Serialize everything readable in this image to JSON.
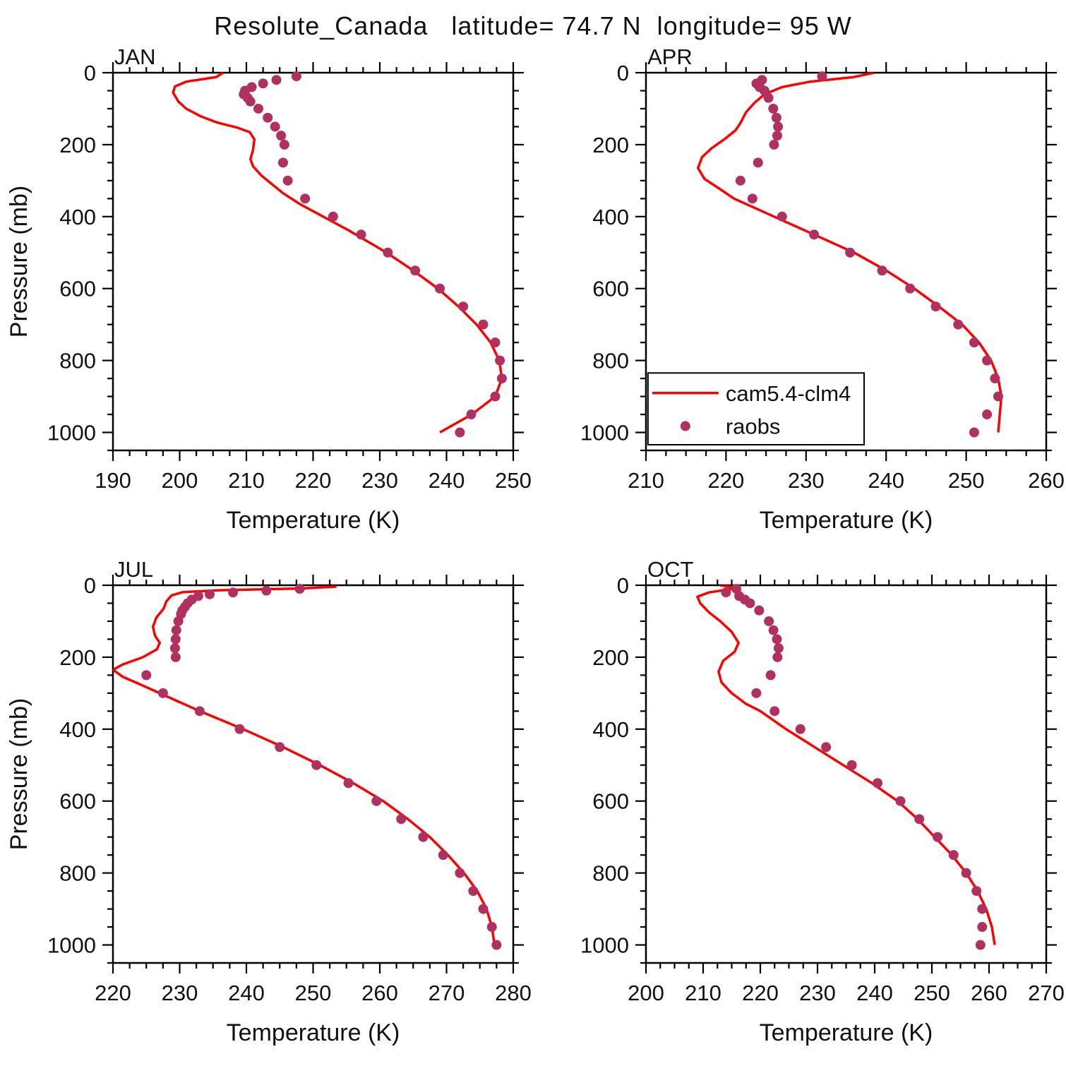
{
  "title": "Resolute_Canada   latitude= 74.7 N  longitude= 95 W",
  "colors": {
    "model_line": "#ff0000",
    "obs_dot": "#b03060",
    "axis": "#000000"
  },
  "legend": {
    "model_label": "cam5.4-clm4",
    "obs_label": "raobs"
  },
  "chart_data": [
    {
      "type": "line",
      "panel_label": "JAN",
      "xlabel": "Temperature (K)",
      "ylabel": "Pressure (mb)",
      "show_ylabel": true,
      "xlim": [
        190,
        250
      ],
      "x_ticks": [
        190,
        200,
        210,
        220,
        230,
        240,
        250
      ],
      "x_minor": 2.5,
      "y_ticks": [
        0,
        200,
        400,
        600,
        800,
        1000
      ],
      "y_minor": 50,
      "y_axis_max": 1050,
      "series": [
        {
          "name": "cam5.4-clm4",
          "style": "line",
          "color": "#ff0000",
          "points": [
            [
              206.5,
              0
            ],
            [
              205.5,
              12
            ],
            [
              201,
              25
            ],
            [
              199.3,
              38
            ],
            [
              199,
              55
            ],
            [
              199.8,
              80
            ],
            [
              201,
              100
            ],
            [
              203,
              120
            ],
            [
              205.5,
              138
            ],
            [
              208.5,
              152
            ],
            [
              210.5,
              165
            ],
            [
              211.2,
              185
            ],
            [
              211,
              215
            ],
            [
              210.6,
              240
            ],
            [
              211,
              260
            ],
            [
              212.2,
              285
            ],
            [
              213.5,
              305
            ],
            [
              215.5,
              335
            ],
            [
              218,
              365
            ],
            [
              220.5,
              390
            ],
            [
              223,
              415
            ],
            [
              225.5,
              440
            ],
            [
              227.5,
              462
            ],
            [
              231,
              500
            ],
            [
              235,
              550
            ],
            [
              238.7,
              600
            ],
            [
              241.8,
              650
            ],
            [
              244.5,
              700
            ],
            [
              246.6,
              750
            ],
            [
              247.9,
              800
            ],
            [
              248.3,
              850
            ],
            [
              247.3,
              900
            ],
            [
              243.8,
              950
            ],
            [
              239,
              1000
            ]
          ]
        },
        {
          "name": "raobs",
          "style": "scatter",
          "color": "#b03060",
          "points": [
            [
              217.5,
              10
            ],
            [
              214.5,
              20
            ],
            [
              212.5,
              30
            ],
            [
              210.8,
              40
            ],
            [
              209.8,
              50
            ],
            [
              209.6,
              60
            ],
            [
              210.2,
              70
            ],
            [
              210.6,
              80
            ],
            [
              211.8,
              100
            ],
            [
              213.2,
              125
            ],
            [
              214.3,
              150
            ],
            [
              215.2,
              175
            ],
            [
              215.7,
              200
            ],
            [
              215.5,
              250
            ],
            [
              216.2,
              300
            ],
            [
              218.8,
              350
            ],
            [
              223,
              400
            ],
            [
              227.2,
              450
            ],
            [
              231.2,
              500
            ],
            [
              235.3,
              550
            ],
            [
              239,
              600
            ],
            [
              242.5,
              650
            ],
            [
              245.5,
              700
            ],
            [
              247.3,
              750
            ],
            [
              248,
              800
            ],
            [
              248.3,
              850
            ],
            [
              247.3,
              900
            ],
            [
              243.7,
              950
            ],
            [
              242,
              1000
            ]
          ]
        }
      ]
    },
    {
      "type": "line",
      "panel_label": "APR",
      "xlabel": "Temperature (K)",
      "ylabel": "Pressure (mb)",
      "show_ylabel": false,
      "xlim": [
        210,
        260
      ],
      "x_ticks": [
        210,
        220,
        230,
        240,
        250,
        260
      ],
      "x_minor": 2.5,
      "y_ticks": [
        0,
        200,
        400,
        600,
        800,
        1000
      ],
      "y_minor": 50,
      "y_axis_max": 1050,
      "legend_box": {
        "x0": 0.005,
        "y0": 0.795,
        "x1": 0.545,
        "y1": 0.985
      },
      "series": [
        {
          "name": "cam5.4-clm4",
          "style": "line",
          "color": "#ff0000",
          "points": [
            [
              238.5,
              0
            ],
            [
              236,
              12
            ],
            [
              230.5,
              25
            ],
            [
              227,
              40
            ],
            [
              224.8,
              60
            ],
            [
              223.5,
              85
            ],
            [
              222.5,
              110
            ],
            [
              221.8,
              140
            ],
            [
              221.2,
              160
            ],
            [
              219.8,
              185
            ],
            [
              218.2,
              210
            ],
            [
              217,
              235
            ],
            [
              216.5,
              265
            ],
            [
              217.3,
              295
            ],
            [
              219,
              320
            ],
            [
              221,
              350
            ],
            [
              226,
              400
            ],
            [
              231,
              450
            ],
            [
              236,
              500
            ],
            [
              240,
              550
            ],
            [
              243.5,
              600
            ],
            [
              246.6,
              650
            ],
            [
              249.5,
              700
            ],
            [
              251.6,
              750
            ],
            [
              253.1,
              800
            ],
            [
              254,
              850
            ],
            [
              254.4,
              900
            ],
            [
              254.2,
              950
            ],
            [
              254,
              1000
            ]
          ]
        },
        {
          "name": "raobs",
          "style": "scatter",
          "color": "#b03060",
          "points": [
            [
              232,
              10
            ],
            [
              224.5,
              20
            ],
            [
              223.8,
              30
            ],
            [
              224.2,
              40
            ],
            [
              224.8,
              50
            ],
            [
              225.3,
              70
            ],
            [
              225.9,
              100
            ],
            [
              226.3,
              125
            ],
            [
              226.5,
              150
            ],
            [
              226.4,
              175
            ],
            [
              226,
              200
            ],
            [
              224,
              250
            ],
            [
              221.8,
              300
            ],
            [
              223.3,
              350
            ],
            [
              227,
              400
            ],
            [
              231,
              450
            ],
            [
              235.5,
              500
            ],
            [
              239.5,
              550
            ],
            [
              243,
              600
            ],
            [
              246.2,
              650
            ],
            [
              249,
              700
            ],
            [
              251,
              750
            ],
            [
              252.6,
              800
            ],
            [
              253.6,
              850
            ],
            [
              254,
              900
            ],
            [
              252.6,
              950
            ],
            [
              251,
              1000
            ]
          ]
        }
      ]
    },
    {
      "type": "line",
      "panel_label": "JUL",
      "xlabel": "Temperature (K)",
      "ylabel": "Pressure (mb)",
      "show_ylabel": true,
      "xlim": [
        220,
        280
      ],
      "x_ticks": [
        220,
        230,
        240,
        250,
        260,
        270,
        280
      ],
      "x_minor": 2.5,
      "y_ticks": [
        0,
        200,
        400,
        600,
        800,
        1000
      ],
      "y_minor": 50,
      "y_axis_max": 1050,
      "series": [
        {
          "name": "cam5.4-clm4",
          "style": "line",
          "color": "#ff0000",
          "points": [
            [
              253.5,
              4
            ],
            [
              248,
              9
            ],
            [
              236,
              14
            ],
            [
              230.5,
              19
            ],
            [
              228.8,
              28
            ],
            [
              228,
              45
            ],
            [
              227.6,
              65
            ],
            [
              226.5,
              90
            ],
            [
              226,
              115
            ],
            [
              226.3,
              140
            ],
            [
              227,
              160
            ],
            [
              226.6,
              178
            ],
            [
              224.5,
              200
            ],
            [
              221.5,
              220
            ],
            [
              220,
              235
            ],
            [
              221.5,
              255
            ],
            [
              224,
              275
            ],
            [
              227,
              300
            ],
            [
              230,
              325
            ],
            [
              233,
              350
            ],
            [
              239.5,
              400
            ],
            [
              245.5,
              450
            ],
            [
              251,
              500
            ],
            [
              256,
              550
            ],
            [
              260.5,
              600
            ],
            [
              264.2,
              650
            ],
            [
              267.5,
              700
            ],
            [
              270.2,
              750
            ],
            [
              272.6,
              800
            ],
            [
              274.6,
              850
            ],
            [
              276,
              900
            ],
            [
              276.8,
              950
            ],
            [
              277.2,
              1000
            ]
          ]
        },
        {
          "name": "raobs",
          "style": "scatter",
          "color": "#b03060",
          "points": [
            [
              248,
              10
            ],
            [
              243,
              15
            ],
            [
              238,
              20
            ],
            [
              234.5,
              25
            ],
            [
              232.8,
              30
            ],
            [
              231.8,
              40
            ],
            [
              231.2,
              50
            ],
            [
              230.8,
              60
            ],
            [
              230.4,
              70
            ],
            [
              230.2,
              80
            ],
            [
              229.8,
              100
            ],
            [
              229.5,
              125
            ],
            [
              229.4,
              150
            ],
            [
              229.3,
              175
            ],
            [
              229.4,
              200
            ],
            [
              225,
              250
            ],
            [
              227.5,
              300
            ],
            [
              233,
              350
            ],
            [
              239,
              400
            ],
            [
              245,
              450
            ],
            [
              250.5,
              500
            ],
            [
              255.3,
              550
            ],
            [
              259.5,
              600
            ],
            [
              263.2,
              650
            ],
            [
              266.5,
              700
            ],
            [
              269.5,
              750
            ],
            [
              272,
              800
            ],
            [
              274,
              850
            ],
            [
              275.5,
              900
            ],
            [
              276.8,
              950
            ],
            [
              277.5,
              1000
            ]
          ]
        }
      ]
    },
    {
      "type": "line",
      "panel_label": "OCT",
      "xlabel": "Temperature (K)",
      "ylabel": "Pressure (mb)",
      "show_ylabel": false,
      "xlim": [
        200,
        270
      ],
      "x_ticks": [
        200,
        210,
        220,
        230,
        240,
        250,
        260,
        270
      ],
      "x_minor": 2.5,
      "y_ticks": [
        0,
        200,
        400,
        600,
        800,
        1000
      ],
      "y_minor": 50,
      "y_axis_max": 1050,
      "series": [
        {
          "name": "cam5.4-clm4",
          "style": "line",
          "color": "#ff0000",
          "points": [
            [
              213,
              0
            ],
            [
              216,
              8
            ],
            [
              211,
              20
            ],
            [
              209,
              32
            ],
            [
              209.5,
              50
            ],
            [
              211,
              75
            ],
            [
              213,
              100
            ],
            [
              215,
              130
            ],
            [
              216.2,
              160
            ],
            [
              215.5,
              185
            ],
            [
              213.5,
              210
            ],
            [
              212.7,
              240
            ],
            [
              213.2,
              270
            ],
            [
              215,
              300
            ],
            [
              217.5,
              330
            ],
            [
              220,
              350
            ],
            [
              224.5,
              400
            ],
            [
              229.5,
              450
            ],
            [
              234.5,
              500
            ],
            [
              239.5,
              550
            ],
            [
              244,
              600
            ],
            [
              247.5,
              650
            ],
            [
              250.5,
              700
            ],
            [
              253.5,
              750
            ],
            [
              256,
              800
            ],
            [
              258,
              850
            ],
            [
              259.5,
              900
            ],
            [
              260.5,
              950
            ],
            [
              261,
              1000
            ]
          ]
        },
        {
          "name": "raobs",
          "style": "scatter",
          "color": "#b03060",
          "points": [
            [
              215.8,
              10
            ],
            [
              214,
              20
            ],
            [
              216.3,
              30
            ],
            [
              217.3,
              40
            ],
            [
              218.2,
              50
            ],
            [
              219.8,
              70
            ],
            [
              221.5,
              100
            ],
            [
              222.3,
              125
            ],
            [
              222.9,
              150
            ],
            [
              223.2,
              175
            ],
            [
              223,
              200
            ],
            [
              221.8,
              250
            ],
            [
              219.3,
              300
            ],
            [
              222.5,
              350
            ],
            [
              227,
              400
            ],
            [
              231.5,
              450
            ],
            [
              236,
              500
            ],
            [
              240.5,
              550
            ],
            [
              244.5,
              600
            ],
            [
              247.8,
              650
            ],
            [
              251,
              700
            ],
            [
              253.8,
              750
            ],
            [
              256,
              800
            ],
            [
              257.8,
              850
            ],
            [
              258.8,
              900
            ],
            [
              258.8,
              950
            ],
            [
              258.5,
              1000
            ]
          ]
        }
      ]
    }
  ]
}
